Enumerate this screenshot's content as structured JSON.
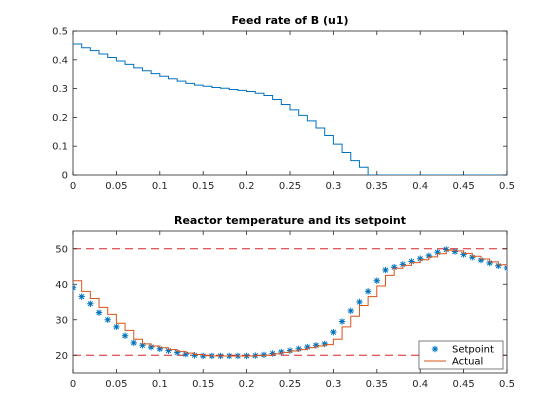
{
  "chart_data": [
    {
      "type": "line",
      "title": "Feed rate of B (u1)",
      "xlabel": "",
      "ylabel": "",
      "xlim": [
        0,
        0.5
      ],
      "ylim": [
        0,
        0.5
      ],
      "xticks": [
        "0",
        "0.05",
        "0.1",
        "0.15",
        "0.2",
        "0.25",
        "0.3",
        "0.35",
        "0.4",
        "0.45",
        "0.5"
      ],
      "yticks": [
        "0",
        "0.1",
        "0.2",
        "0.3",
        "0.4",
        "0.5"
      ],
      "grid": false,
      "series": [
        {
          "style": "stairs",
          "color": "#0072bd",
          "x": [
            0,
            0.01,
            0.02,
            0.03,
            0.04,
            0.05,
            0.06,
            0.07,
            0.08,
            0.09,
            0.1,
            0.11,
            0.12,
            0.13,
            0.14,
            0.15,
            0.16,
            0.17,
            0.18,
            0.19,
            0.2,
            0.21,
            0.22,
            0.23,
            0.24,
            0.25,
            0.26,
            0.27,
            0.28,
            0.29,
            0.3,
            0.31,
            0.32,
            0.33,
            0.34,
            0.35,
            0.5
          ],
          "values": [
            0.455,
            0.442,
            0.432,
            0.42,
            0.408,
            0.396,
            0.384,
            0.372,
            0.362,
            0.352,
            0.343,
            0.334,
            0.326,
            0.318,
            0.312,
            0.308,
            0.304,
            0.301,
            0.297,
            0.294,
            0.29,
            0.284,
            0.276,
            0.262,
            0.245,
            0.226,
            0.207,
            0.188,
            0.163,
            0.137,
            0.107,
            0.078,
            0.05,
            0.027,
            0.0,
            0.0,
            0.0
          ]
        }
      ]
    },
    {
      "type": "line",
      "title": "Reactor temperature and its setpoint",
      "xlabel": "",
      "ylabel": "",
      "xlim": [
        0,
        0.5
      ],
      "ylim": [
        15,
        55
      ],
      "xticks": [
        "0",
        "0.05",
        "0.1",
        "0.15",
        "0.2",
        "0.25",
        "0.3",
        "0.35",
        "0.4",
        "0.45",
        "0.5"
      ],
      "yticks": [
        "20",
        "30",
        "40",
        "50"
      ],
      "grid": false,
      "legend_position": "bottom-right",
      "reference_lines": [
        {
          "y": 50,
          "color": "#d62728",
          "style": "dashed"
        },
        {
          "y": 20,
          "color": "#d62728",
          "style": "dashed"
        }
      ],
      "series": [
        {
          "name": "Setpoint",
          "style": "markers",
          "marker": "*",
          "color": "#0072bd",
          "x": [
            0.0,
            0.01,
            0.02,
            0.03,
            0.04,
            0.05,
            0.06,
            0.07,
            0.08,
            0.09,
            0.1,
            0.11,
            0.12,
            0.13,
            0.14,
            0.15,
            0.16,
            0.17,
            0.18,
            0.19,
            0.2,
            0.21,
            0.22,
            0.23,
            0.24,
            0.25,
            0.26,
            0.27,
            0.28,
            0.29,
            0.3,
            0.31,
            0.32,
            0.33,
            0.34,
            0.35,
            0.36,
            0.37,
            0.38,
            0.39,
            0.4,
            0.41,
            0.42,
            0.43,
            0.44,
            0.45,
            0.46,
            0.47,
            0.48,
            0.49,
            0.5
          ],
          "values": [
            39.0,
            36.5,
            34.5,
            32.0,
            30.0,
            28.0,
            25.5,
            23.5,
            22.8,
            22.3,
            21.8,
            21.3,
            20.8,
            20.3,
            20.0,
            19.8,
            19.8,
            19.8,
            19.8,
            19.8,
            19.8,
            19.9,
            20.1,
            20.5,
            20.9,
            21.3,
            21.8,
            22.3,
            22.8,
            23.2,
            26.5,
            29.5,
            32.5,
            35.0,
            38.0,
            41.0,
            44.0,
            44.8,
            45.6,
            46.4,
            47.2,
            48.0,
            49.0,
            49.8,
            49.2,
            48.4,
            47.6,
            46.8,
            46.0,
            45.2,
            44.6
          ]
        },
        {
          "name": "Actual",
          "style": "stairs",
          "color": "#d95319",
          "x": [
            0.0,
            0.01,
            0.02,
            0.03,
            0.04,
            0.05,
            0.06,
            0.07,
            0.08,
            0.09,
            0.1,
            0.11,
            0.12,
            0.13,
            0.14,
            0.15,
            0.16,
            0.17,
            0.18,
            0.19,
            0.2,
            0.21,
            0.22,
            0.23,
            0.24,
            0.25,
            0.26,
            0.27,
            0.28,
            0.29,
            0.3,
            0.31,
            0.32,
            0.33,
            0.34,
            0.35,
            0.36,
            0.37,
            0.38,
            0.39,
            0.4,
            0.41,
            0.42,
            0.43,
            0.44,
            0.45,
            0.46,
            0.47,
            0.48,
            0.49,
            0.5
          ],
          "values": [
            41.0,
            38.0,
            36.0,
            33.5,
            31.5,
            29.0,
            27.0,
            24.5,
            23.2,
            22.6,
            22.1,
            21.6,
            21.1,
            20.6,
            20.2,
            19.9,
            19.8,
            19.8,
            19.8,
            19.8,
            19.8,
            19.9,
            20.0,
            20.4,
            20.8,
            21.2,
            21.6,
            22.1,
            22.6,
            23.0,
            24.5,
            28.0,
            31.0,
            34.0,
            36.5,
            39.5,
            42.5,
            44.5,
            45.3,
            46.1,
            46.9,
            47.7,
            48.6,
            49.6,
            49.4,
            48.7,
            47.9,
            47.1,
            46.3,
            45.5,
            44.8
          ]
        }
      ]
    }
  ]
}
